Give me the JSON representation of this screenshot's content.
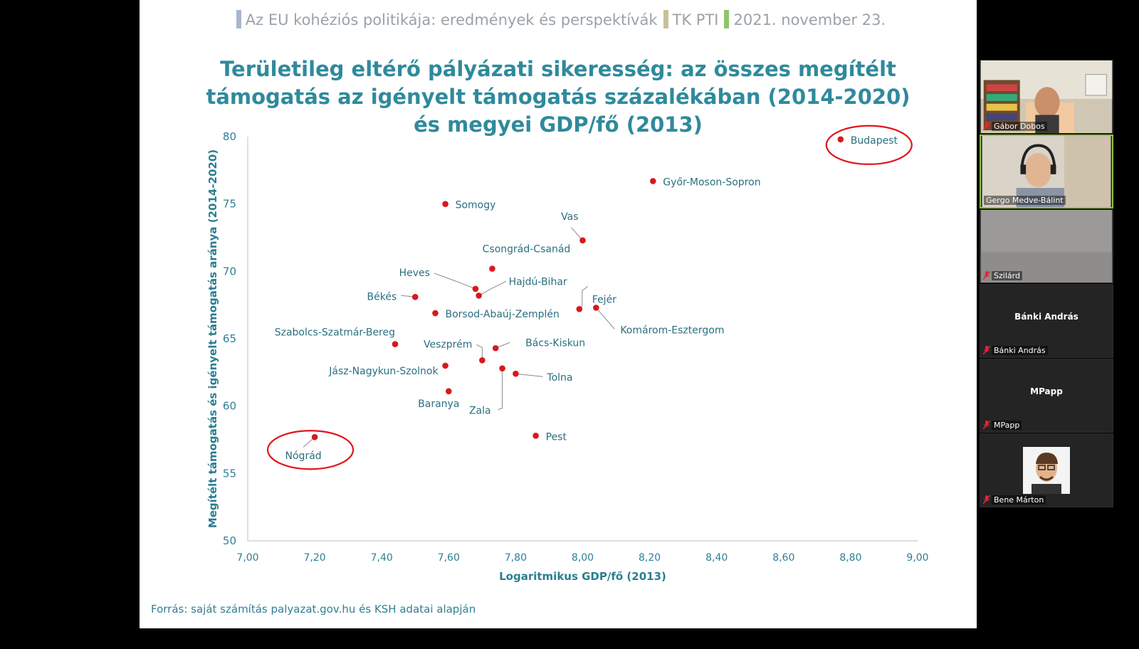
{
  "header": {
    "segments": [
      {
        "text": "Az EU kohéziós politikája: eredmények és perspektívák",
        "bar_color": "#a9b6cf"
      },
      {
        "text": "TK PTI",
        "bar_color": "#c8c09a"
      },
      {
        "text": "2021. november 23.",
        "bar_color": "#92c46b"
      }
    ]
  },
  "slide": {
    "title_lines": [
      "Területileg eltérő pályázati sikeresség: az összes megítélt",
      "támogatás az igényelt támogatás százalékában (2014-2020)",
      "és megyei GDP/fő (2013)"
    ],
    "source": "Forrás: saját számítás palyazat.gov.hu és KSH adatai alapján"
  },
  "chart_data": {
    "type": "scatter",
    "title": "",
    "xlabel": "Logaritmikus GDP/fő (2013)",
    "ylabel": "Megítélt támogatás és igényelt támogatás aránya (2014-2020)",
    "xlim": [
      7.0,
      9.0
    ],
    "ylim": [
      50,
      80
    ],
    "x_ticks": [
      "7,00",
      "7,20",
      "7,40",
      "7,60",
      "7,80",
      "8,00",
      "8,20",
      "8,40",
      "8,60",
      "8,80",
      "9,00"
    ],
    "y_ticks": [
      "50",
      "55",
      "60",
      "65",
      "70",
      "75",
      "80"
    ],
    "grid": false,
    "point_color": "#d7191c",
    "highlight_color": "#e3141b",
    "points": [
      {
        "label": "Budapest",
        "x": 8.77,
        "y": 79.8,
        "highlight": true
      },
      {
        "label": "Győr-Moson-Sopron",
        "x": 8.21,
        "y": 76.7
      },
      {
        "label": "Somogy",
        "x": 7.59,
        "y": 75.0
      },
      {
        "label": "Vas",
        "x": 8.0,
        "y": 72.3
      },
      {
        "label": "Csongrád-Csanád",
        "x": 7.73,
        "y": 70.2
      },
      {
        "label": "Heves",
        "x": 7.68,
        "y": 68.7
      },
      {
        "label": "Hajdú-Bihar",
        "x": 7.69,
        "y": 68.2
      },
      {
        "label": "Békés",
        "x": 7.5,
        "y": 68.1
      },
      {
        "label": "Fejér",
        "x": 7.99,
        "y": 67.2
      },
      {
        "label": "Komárom-Esztergom",
        "x": 8.04,
        "y": 67.3
      },
      {
        "label": "Borsod-Abaúj-Zemplén",
        "x": 7.56,
        "y": 66.9
      },
      {
        "label": "Szabolcs-Szatmár-Bereg",
        "x": 7.44,
        "y": 64.6
      },
      {
        "label": "Veszprém",
        "x": 7.7,
        "y": 63.4
      },
      {
        "label": "Bács-Kiskun",
        "x": 7.74,
        "y": 64.3
      },
      {
        "label": "Jász-Nagykun-Szolnok",
        "x": 7.59,
        "y": 63.0
      },
      {
        "label": "Zala",
        "x": 7.76,
        "y": 62.8
      },
      {
        "label": "Tolna",
        "x": 7.8,
        "y": 62.4
      },
      {
        "label": "Baranya",
        "x": 7.6,
        "y": 61.1
      },
      {
        "label": "Pest",
        "x": 7.86,
        "y": 57.8
      },
      {
        "label": "Nógrád",
        "x": 7.2,
        "y": 57.7,
        "highlight": true
      }
    ]
  },
  "participants": [
    {
      "name": "Gábor Dobos",
      "video": "bookshelf-room",
      "muted": true,
      "active": false
    },
    {
      "name": "Gergo Medve-Bálint",
      "video": "headset-person",
      "muted": false,
      "active": true
    },
    {
      "name": "Szilárd",
      "video": "empty-room",
      "muted": true,
      "active": false
    },
    {
      "name": "Bánki András",
      "video": "none",
      "muted": true,
      "active": false,
      "center_label": "Bánki András"
    },
    {
      "name": "MPapp",
      "video": "none",
      "muted": true,
      "active": false,
      "center_label": "MPapp"
    },
    {
      "name": "Bene Márton",
      "video": "profile-photo",
      "muted": true,
      "active": false
    }
  ]
}
